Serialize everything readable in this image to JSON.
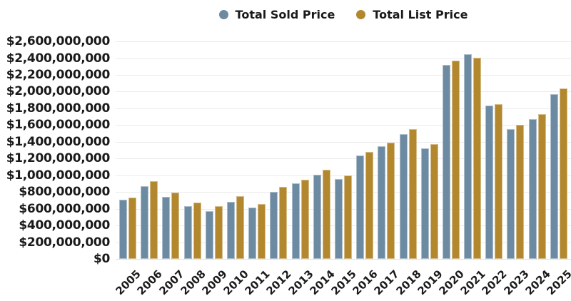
{
  "colors": {
    "sold": "#6C8AA1",
    "list": "#B2872E",
    "text": "#1a1a1a",
    "gridline": "#ebebeb",
    "background": "#ffffff"
  },
  "chart_data": {
    "type": "bar",
    "title": "",
    "xlabel": "",
    "ylabel": "",
    "categories": [
      "2005",
      "2006",
      "2007",
      "2008",
      "2009",
      "2010",
      "2011",
      "2012",
      "2013",
      "2014",
      "2015",
      "2016",
      "2017",
      "2018",
      "2019",
      "2020",
      "2021",
      "2022",
      "2023",
      "2024",
      "2025"
    ],
    "series": [
      {
        "name": "Total Sold Price",
        "key": "sold",
        "color": "#6C8AA1",
        "values": [
          705000000,
          870000000,
          740000000,
          630000000,
          575000000,
          685000000,
          610000000,
          805000000,
          905000000,
          1010000000,
          955000000,
          1235000000,
          1345000000,
          1490000000,
          1325000000,
          2320000000,
          2450000000,
          1830000000,
          1550000000,
          1675000000,
          1965000000
        ]
      },
      {
        "name": "Total List Price",
        "key": "list",
        "color": "#B2872E",
        "values": [
          735000000,
          925000000,
          790000000,
          675000000,
          630000000,
          750000000,
          660000000,
          860000000,
          945000000,
          1065000000,
          995000000,
          1280000000,
          1390000000,
          1550000000,
          1370000000,
          2370000000,
          2405000000,
          1850000000,
          1600000000,
          1730000000,
          2040000000
        ]
      }
    ],
    "ylim": [
      0,
      2600000000
    ],
    "ytick_step": 200000000,
    "y_tick_labels": [
      "$2,600,000,000",
      "$2,400,000,000",
      "$2,200,000,000",
      "$2,000,000,000",
      "$1,800,000,000",
      "$1,600,000,000",
      "$1,400,000,000",
      "$1,200,000,000",
      "$1,000,000,000",
      "$800,000,000",
      "$600,000,000",
      "$400,000,000",
      "$200,000,000",
      "$0"
    ],
    "grid": true,
    "legend_position": "top"
  }
}
